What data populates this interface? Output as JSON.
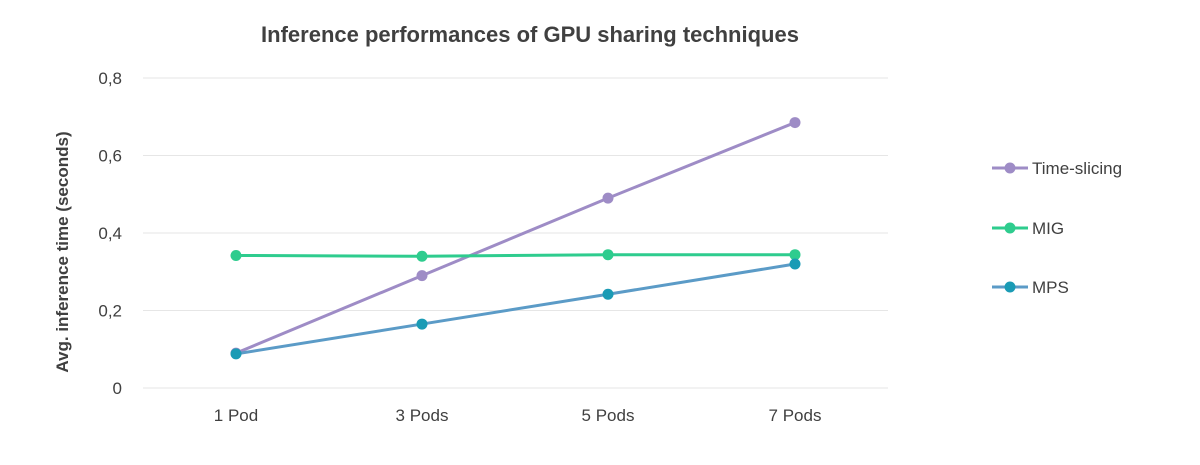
{
  "chart_data": {
    "type": "line",
    "title": "Inference performances of GPU sharing techniques",
    "xlabel": "",
    "ylabel": "Avg. inference time (seconds)",
    "categories": [
      "1 Pod",
      "3 Pods",
      "5 Pods",
      "7 Pods"
    ],
    "ylim": [
      0,
      0.8
    ],
    "yticks": [
      0,
      0.2,
      0.4,
      0.6,
      0.8
    ],
    "ytick_labels": [
      "0",
      "0,2",
      "0,4",
      "0,6",
      "0,8"
    ],
    "grid": true,
    "legend_position": "right",
    "series": [
      {
        "name": "Time-slicing",
        "color": "#9e8cc6",
        "values": [
          0.09,
          0.29,
          0.49,
          0.685
        ]
      },
      {
        "name": "MIG",
        "color": "#2ecc8e",
        "values": [
          0.342,
          0.34,
          0.344,
          0.344
        ]
      },
      {
        "name": "MPS",
        "color": "#5b9bc7",
        "marker_color": "#1a9bb5",
        "values": [
          0.088,
          0.165,
          0.242,
          0.32
        ]
      }
    ]
  }
}
